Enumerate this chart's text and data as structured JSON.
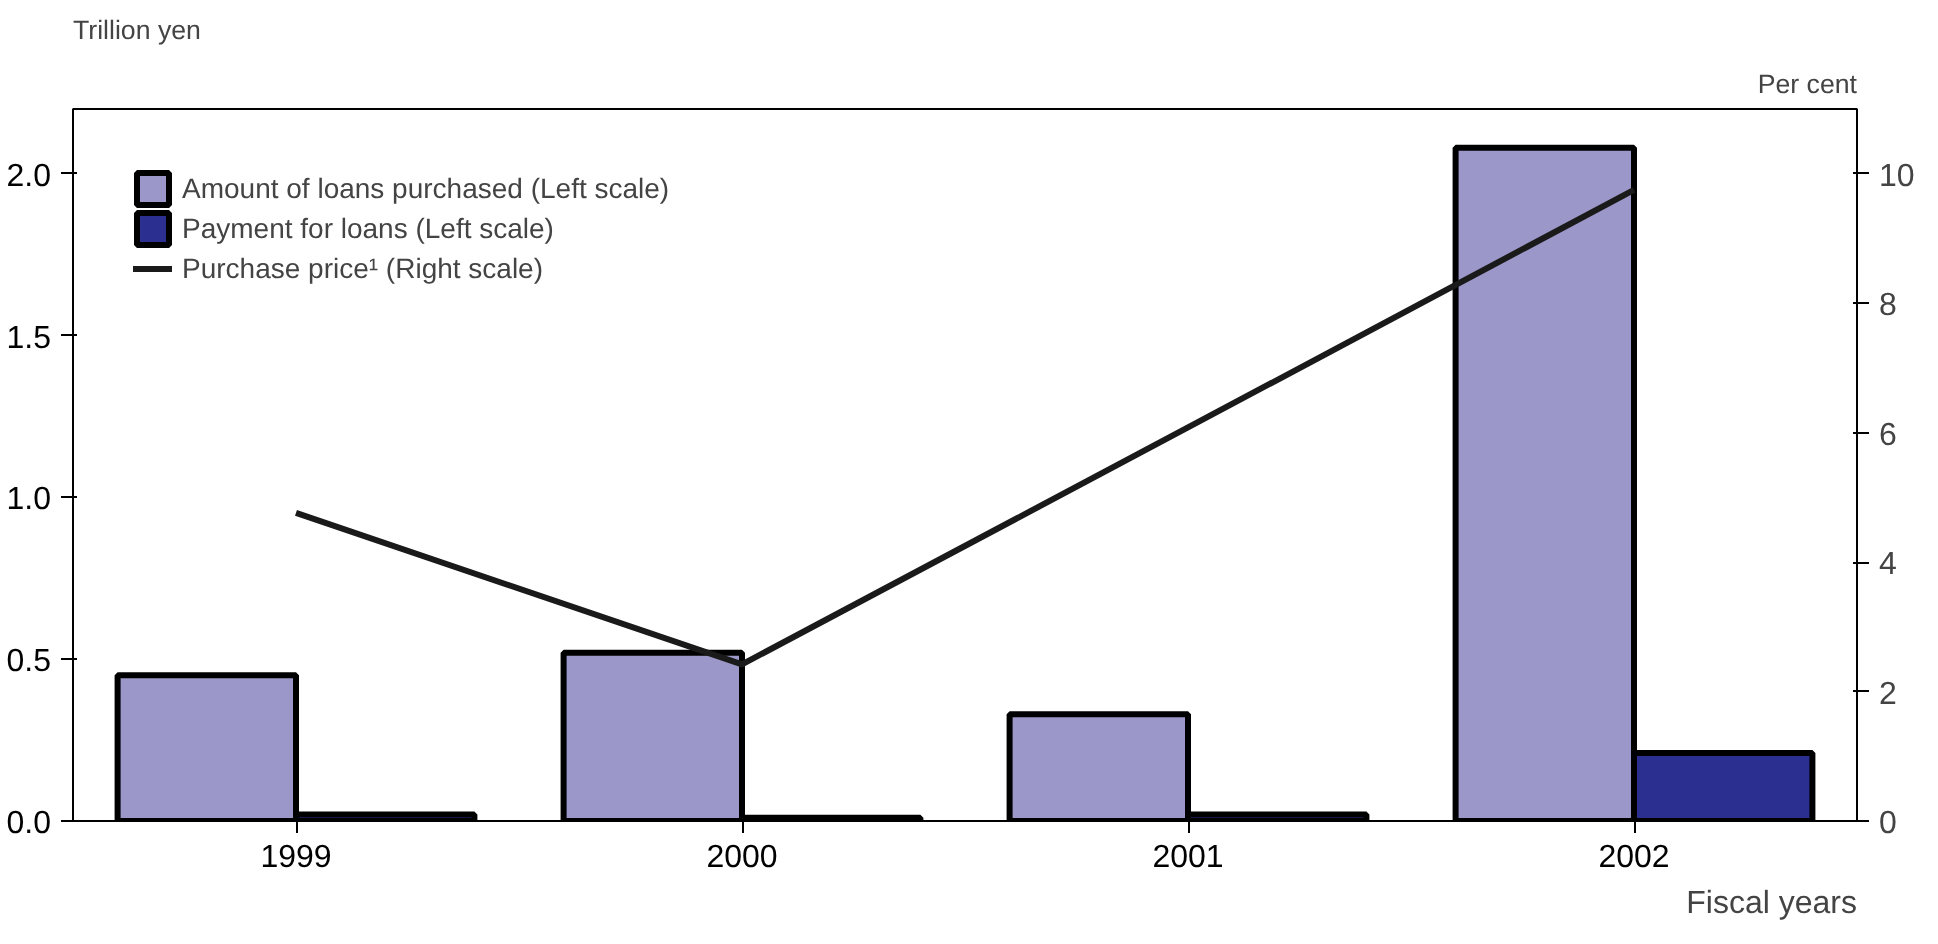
{
  "chart_data": {
    "type": "bar",
    "categories": [
      "1999",
      "2000",
      "2001",
      "2002"
    ],
    "xlabel": "Fiscal years",
    "ylabel": "Trillion yen",
    "y2label": "Per cent",
    "series": [
      {
        "name": "Amount of loans purchased (Left scale)",
        "color": "#9b97c9",
        "values": [
          0.45,
          0.52,
          0.33,
          2.08
        ]
      },
      {
        "name": "Payment for loans (Left scale)",
        "color": "#2b2f8f",
        "values": [
          0.02,
          0.01,
          0.02,
          0.21
        ]
      },
      {
        "name": "Purchase price¹ (Right scale)",
        "type": "line",
        "axis": "y2",
        "color": "#1a1a1a",
        "values": [
          4.76,
          2.42,
          6.08,
          9.75
        ]
      }
    ],
    "ylim": [
      0,
      2.2
    ],
    "yticks": [
      {
        "value": 0,
        "label": "0.0"
      },
      0.5,
      {
        "value": 1,
        "label": "1.0"
      },
      1.5,
      {
        "value": 2,
        "label": "2.0"
      }
    ],
    "y2lim": [
      0,
      11
    ],
    "y2ticks": [
      0,
      2,
      4,
      6,
      8,
      10
    ],
    "grid": false,
    "legend": "top left"
  }
}
